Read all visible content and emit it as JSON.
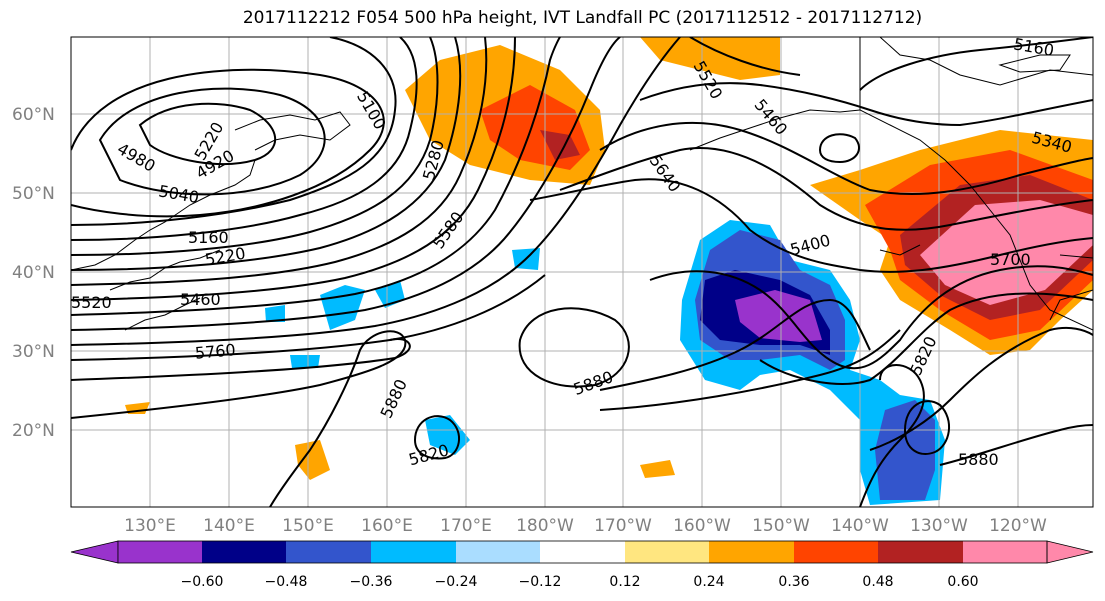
{
  "title": "2017112212 F054 500 hPa height, IVT Landfall PC (2017112512 - 2017112712)",
  "lat_labels": [
    "60°N",
    "50°N",
    "40°N",
    "30°N",
    "20°N"
  ],
  "lon_labels": [
    "130°E",
    "140°E",
    "150°E",
    "160°E",
    "170°E",
    "180°W",
    "170°W",
    "160°W",
    "150°W",
    "140°W",
    "130°W",
    "120°W"
  ],
  "contour_labels": [
    "5100",
    "4920",
    "4980",
    "5040",
    "5160",
    "5220",
    "5460",
    "5760",
    "5880",
    "5820",
    "5880",
    "5580",
    "5280",
    "5220",
    "5640",
    "5460",
    "5400",
    "5340",
    "5160",
    "5700",
    "5820",
    "5880",
    "5520",
    "5520"
  ],
  "colorbar": {
    "colors": [
      "#9933cc",
      "#000088",
      "#3355cc",
      "#00bbff",
      "#aaddff",
      "#ffffff",
      "#ffe680",
      "#ffa500",
      "#ff4400",
      "#b22222",
      "#ff88aa"
    ],
    "ticks": [
      "−0.60",
      "−0.48",
      "−0.36",
      "−0.24",
      "−0.12",
      "0.12",
      "0.24",
      "0.36",
      "0.48",
      "0.60"
    ]
  }
}
